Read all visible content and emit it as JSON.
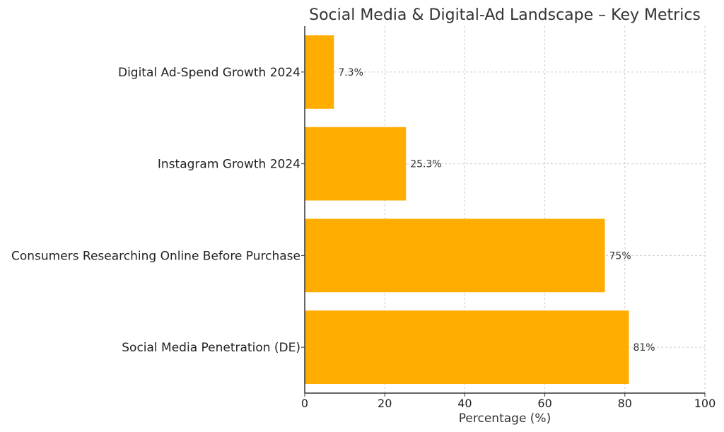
{
  "chart_data": {
    "type": "bar",
    "orientation": "horizontal",
    "title": "Social Media & Digital-Ad Landscape – Key Metrics",
    "xlabel": "Percentage (%)",
    "ylabel": "",
    "xlim": [
      0,
      100
    ],
    "xticks": [
      0,
      20,
      40,
      60,
      80,
      100
    ],
    "grid": true,
    "bar_color": "#FFAD00",
    "categories": [
      "Social Media Penetration (DE)",
      "Consumers Researching Online Before Purchase",
      "Instagram Growth 2024",
      "Digital Ad-Spend Growth 2024"
    ],
    "values": [
      81,
      75,
      25.3,
      7.3
    ],
    "data_labels": [
      "81%",
      "75%",
      "25.3%",
      "7.3%"
    ]
  }
}
